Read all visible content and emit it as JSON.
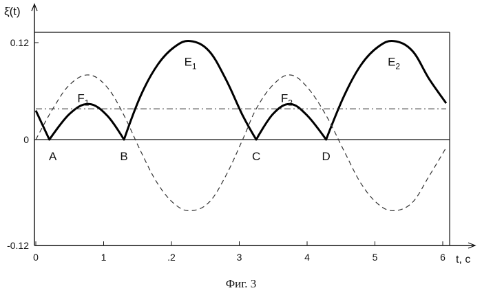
{
  "chart_data": {
    "type": "line",
    "title": "",
    "ylabel": "ξ̇(t)",
    "xlabel": "t, c",
    "caption": "Фиг. 3",
    "xlim": [
      0,
      6.1
    ],
    "ylim": [
      -0.12,
      0.12
    ],
    "y_top_frame": 0.135,
    "x_ticks": [
      0,
      1,
      2,
      3,
      4,
      5,
      6
    ],
    "x_tick_labels": [
      "0",
      "1",
      ".2",
      "3",
      "4",
      "5",
      "6"
    ],
    "y_ticks": [
      -0.12,
      0,
      0.12
    ],
    "y_tick_labels": [
      "-0.12",
      "0",
      "0.12"
    ],
    "series": [
      {
        "name": "",
        "style": "thick-solid",
        "x": [
          0,
          0.2,
          0.5,
          0.78,
          1.05,
          1.3,
          1.55,
          1.8,
          2.05,
          2.28,
          2.55,
          2.8,
          3.05,
          3.25,
          3.5,
          3.75,
          4.0,
          4.28,
          4.55,
          4.8,
          5.05,
          5.28,
          5.55,
          5.8,
          6.05
        ],
        "y": [
          0.036,
          0.0,
          0.032,
          0.044,
          0.03,
          0.0,
          0.055,
          0.093,
          0.115,
          0.122,
          0.11,
          0.075,
          0.03,
          0.0,
          0.032,
          0.044,
          0.03,
          0.0,
          0.055,
          0.093,
          0.115,
          0.122,
          0.11,
          0.075,
          0.045
        ]
      },
      {
        "name": "",
        "style": "dashed",
        "x": [
          0,
          0.25,
          0.5,
          0.78,
          1.05,
          1.3,
          1.55,
          1.8,
          2.05,
          2.28,
          2.55,
          2.8,
          3.05,
          3.25,
          3.5,
          3.75,
          4.0,
          4.28,
          4.55,
          4.8,
          5.05,
          5.28,
          5.55,
          5.8,
          6.05
        ],
        "y": [
          0.0,
          0.038,
          0.068,
          0.08,
          0.065,
          0.03,
          -0.015,
          -0.055,
          -0.08,
          -0.088,
          -0.078,
          -0.045,
          0.0,
          0.038,
          0.068,
          0.08,
          0.065,
          0.03,
          -0.015,
          -0.055,
          -0.08,
          -0.088,
          -0.078,
          -0.045,
          -0.01
        ]
      },
      {
        "name": "",
        "style": "dash-dot",
        "x": [
          0,
          6.05
        ],
        "y": [
          0.038,
          0.038
        ]
      }
    ],
    "annotations": [
      {
        "text": "A",
        "x": 0.25,
        "y": -0.012
      },
      {
        "text": "B",
        "x": 1.3,
        "y": -0.012
      },
      {
        "text": "C",
        "x": 3.25,
        "y": -0.012
      },
      {
        "text": "D",
        "x": 4.28,
        "y": -0.012
      },
      {
        "text": "F",
        "sub": "1",
        "x": 0.7,
        "y": 0.06
      },
      {
        "text": "E",
        "sub": "1",
        "x": 2.28,
        "y": 0.105
      },
      {
        "text": "F",
        "sub": "2",
        "x": 3.7,
        "y": 0.06
      },
      {
        "text": "E",
        "sub": "2",
        "x": 5.28,
        "y": 0.105
      }
    ],
    "grid": false,
    "legend": "none"
  }
}
